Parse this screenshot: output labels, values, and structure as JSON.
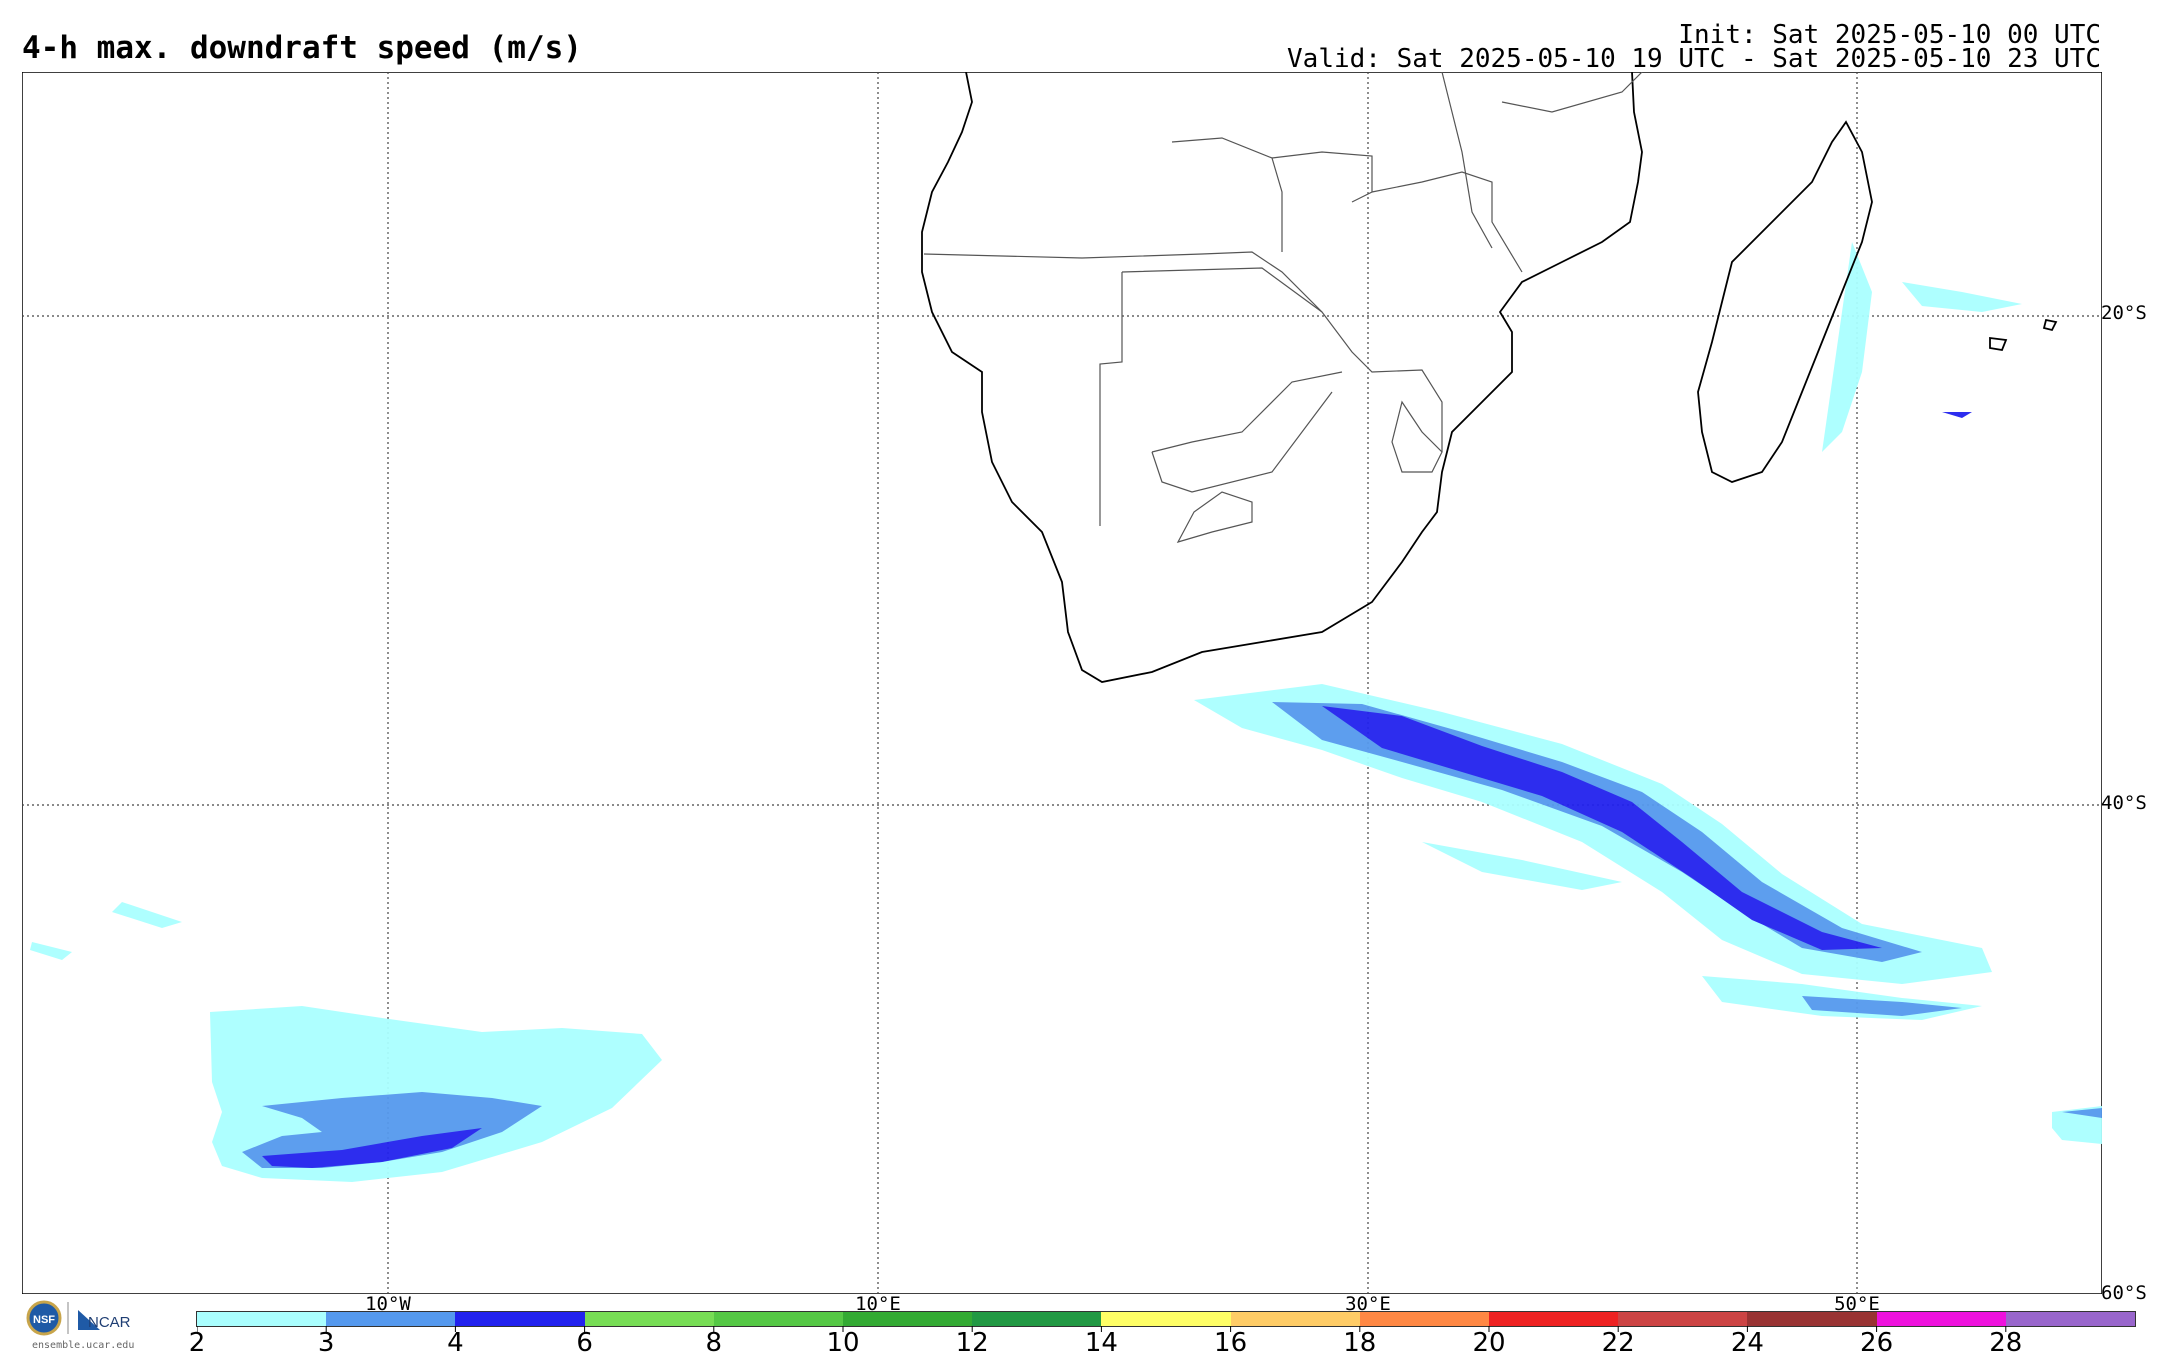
{
  "header": {
    "title": "4-h max. downdraft speed (m/s)",
    "init": "Init: Sat 2025-05-10 00 UTC",
    "valid": "Valid: Sat 2025-05-10 19 UTC - Sat 2025-05-10 23 UTC"
  },
  "map": {
    "latitude_labels": [
      "20°S",
      "40°S",
      "60°S"
    ],
    "longitude_labels": [
      "10°W",
      "10°E",
      "30°E",
      "50°E"
    ]
  },
  "logo": {
    "nsf_text": "NSF",
    "ncar_text": "NCAR",
    "url": "ensemble.ucar.edu"
  },
  "colorbar": {
    "colors": [
      "#aaffff",
      "#5599ee",
      "#2222ee",
      "#77dd55",
      "#55c845",
      "#33aa33",
      "#229944",
      "#ffff66",
      "#ffcc66",
      "#ff8844",
      "#ee2222",
      "#cc4444",
      "#993333",
      "#ee11dd",
      "#9966cc"
    ],
    "labels": [
      "2",
      "3",
      "4",
      "6",
      "8",
      "10",
      "12",
      "14",
      "16",
      "18",
      "20",
      "22",
      "24",
      "26",
      "28"
    ]
  }
}
